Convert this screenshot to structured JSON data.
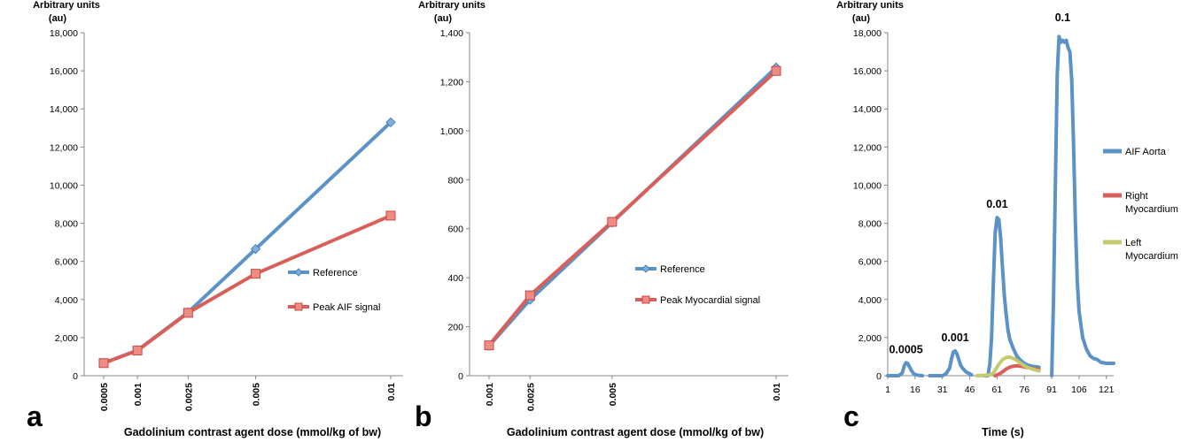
{
  "chart_data": [
    {
      "panel_label": "a",
      "type": "line",
      "x_axis": "categorical",
      "categories": [
        "0.0005",
        "0.001",
        "0.0025",
        "0.005",
        "0.01"
      ],
      "series": [
        {
          "name": "Reference",
          "color": "#5b93c7",
          "marker": "diamond",
          "values": [
            665,
            1330,
            3325,
            6650,
            13300
          ]
        },
        {
          "name": "Peak AIF signal",
          "color": "#d9605a",
          "marker": "square",
          "values": [
            660,
            1320,
            3300,
            5350,
            8400
          ]
        }
      ],
      "ylabel_line1": "Arbitrary units",
      "ylabel_line2": "(au)",
      "xlabel": "Gadolinium contrast agent dose (mmol/kg of bw)",
      "ylim": [
        0,
        18000
      ],
      "yticks": [
        "0",
        "2,000",
        "4,000",
        "6,000",
        "8,000",
        "10,000",
        "12,000",
        "14,000",
        "16,000",
        "18,000"
      ],
      "legend": "right-middle"
    },
    {
      "panel_label": "b",
      "type": "line",
      "x_axis": "categorical",
      "categories": [
        "0.001",
        "0.0025",
        "0.005",
        "0.01"
      ],
      "series": [
        {
          "name": "Reference",
          "color": "#5b93c7",
          "marker": "diamond",
          "values": [
            122,
            310,
            625,
            1258
          ]
        },
        {
          "name": "Peak Myocardial signal",
          "color": "#d9605a",
          "marker": "square",
          "values": [
            124,
            328,
            628,
            1244
          ]
        }
      ],
      "ylabel_line1": "Arbitrary units",
      "ylabel_line2": "(au)",
      "xlabel": "Gadolinium contrast agent dose (mmol/kg of bw)",
      "ylim": [
        0,
        1400
      ],
      "yticks": [
        "0",
        "200",
        "400",
        "600",
        "800",
        "1,000",
        "1,200",
        "1,400"
      ],
      "legend": "right-middle"
    },
    {
      "panel_label": "c",
      "type": "line",
      "x_axis": "linear",
      "xlim": [
        1,
        125
      ],
      "xticks": [
        1,
        16,
        31,
        46,
        61,
        76,
        91,
        106,
        121
      ],
      "ylabel_line1": "Arbitrary units",
      "ylabel_line2": "(au)",
      "xlabel": "Time (s)",
      "ylim": [
        0,
        18000
      ],
      "yticks": [
        "0",
        "2,000",
        "4,000",
        "6,000",
        "8,000",
        "10,000",
        "12,000",
        "14,000",
        "16,000",
        "18,000"
      ],
      "legend": "right",
      "series": [
        {
          "name": "AIF Aorta",
          "color": "#5b93c7",
          "segments": [
            [
              [
                1,
                0
              ],
              [
                7,
                0
              ],
              [
                9,
                150
              ],
              [
                10,
                500
              ],
              [
                11,
                680
              ],
              [
                12,
                640
              ],
              [
                13,
                450
              ],
              [
                14,
                280
              ],
              [
                15,
                130
              ],
              [
                16,
                60
              ],
              [
                18,
                20
              ],
              [
                20,
                0
              ]
            ],
            [
              [
                24,
                0
              ],
              [
                31,
                0
              ],
              [
                33,
                100
              ],
              [
                35,
                400
              ],
              [
                36,
                900
              ],
              [
                37,
                1250
              ],
              [
                38,
                1300
              ],
              [
                39,
                1150
              ],
              [
                40,
                850
              ],
              [
                41,
                550
              ],
              [
                42,
                400
              ],
              [
                44,
                200
              ],
              [
                46,
                100
              ],
              [
                47,
                40
              ]
            ],
            [
              [
                54,
                0
              ],
              [
                56,
                0
              ],
              [
                57,
                600
              ],
              [
                58,
                2000
              ],
              [
                59,
                5000
              ],
              [
                60,
                7500
              ],
              [
                61,
                8300
              ],
              [
                62,
                8200
              ],
              [
                63,
                7200
              ],
              [
                64,
                5600
              ],
              [
                65,
                4200
              ],
              [
                66,
                3200
              ],
              [
                67,
                2400
              ],
              [
                68,
                1900
              ],
              [
                70,
                1400
              ],
              [
                72,
                1000
              ],
              [
                74,
                800
              ],
              [
                76,
                650
              ],
              [
                78,
                550
              ],
              [
                80,
                500
              ],
              [
                84,
                450
              ]
            ],
            [
              [
                91,
                0
              ],
              [
                92,
                4000
              ],
              [
                93,
                10000
              ],
              [
                94,
                15800
              ],
              [
                95,
                17800
              ],
              [
                96,
                17500
              ],
              [
                97,
                17600
              ],
              [
                98,
                17500
              ],
              [
                99,
                17600
              ],
              [
                100,
                17200
              ],
              [
                101,
                17000
              ],
              [
                102,
                15500
              ],
              [
                103,
                12000
              ],
              [
                104,
                8000
              ],
              [
                105,
                5000
              ],
              [
                106,
                3400
              ],
              [
                108,
                2000
              ],
              [
                110,
                1400
              ],
              [
                112,
                1050
              ],
              [
                114,
                900
              ],
              [
                116,
                850
              ],
              [
                118,
                700
              ],
              [
                121,
                650
              ],
              [
                125,
                650
              ]
            ]
          ]
        },
        {
          "name": "Right Myocardium",
          "color": "#d9605a",
          "segments": [
            [
              [
                60,
                0
              ],
              [
                62,
                80
              ],
              [
                64,
                200
              ],
              [
                66,
                350
              ],
              [
                68,
                450
              ],
              [
                70,
                500
              ],
              [
                72,
                520
              ],
              [
                74,
                500
              ],
              [
                76,
                460
              ],
              [
                78,
                420
              ],
              [
                80,
                380
              ],
              [
                82,
                350
              ],
              [
                84,
                330
              ]
            ]
          ]
        },
        {
          "name": "Left Myocardium",
          "color": "#c2cc6f",
          "segments": [
            [
              [
                50,
                0
              ],
              [
                54,
                20
              ],
              [
                57,
                40
              ],
              [
                59,
                150
              ],
              [
                60,
                300
              ],
              [
                62,
                600
              ],
              [
                64,
                850
              ],
              [
                66,
                950
              ],
              [
                68,
                980
              ],
              [
                70,
                900
              ],
              [
                72,
                800
              ],
              [
                74,
                650
              ],
              [
                76,
                520
              ],
              [
                78,
                420
              ],
              [
                80,
                360
              ],
              [
                82,
                300
              ],
              [
                84,
                250
              ]
            ]
          ]
        }
      ],
      "annotations": [
        {
          "text": "0.0005",
          "x": 11,
          "y": 680
        },
        {
          "text": "0.001",
          "x": 38,
          "y": 1300
        },
        {
          "text": "0.01",
          "x": 61,
          "y": 8300
        },
        {
          "text": "0.1",
          "x": 97,
          "y": 18000
        }
      ]
    }
  ]
}
